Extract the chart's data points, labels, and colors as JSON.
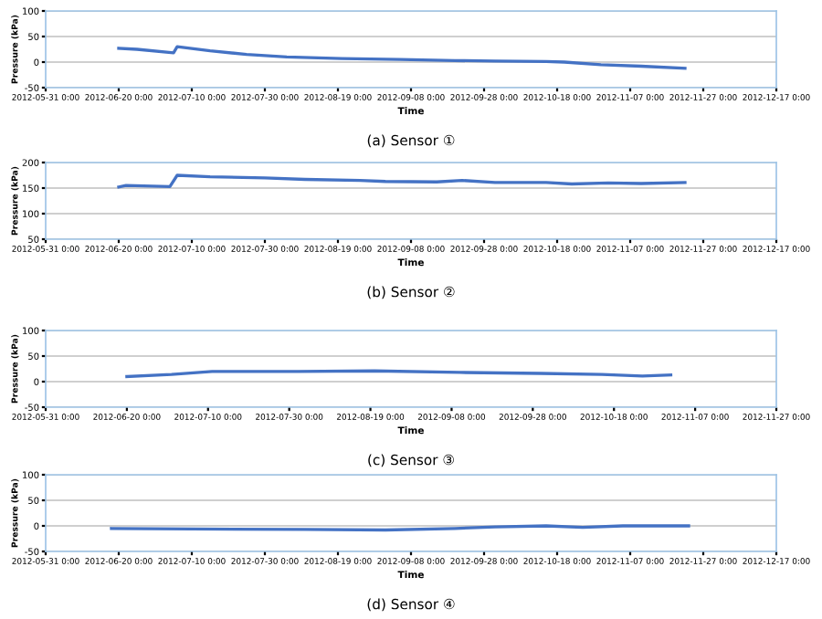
{
  "chart_data": [
    {
      "type": "line",
      "title": "(a) Sensor ①",
      "xlabel": "Time",
      "ylabel": "Pressure (kPa)",
      "grid": "y",
      "line_style": "solid",
      "xlim": [
        "2012-05-31",
        "2012-12-17"
      ],
      "xticks": [
        {
          "value": "2012-05-31",
          "label": "2012-05-31 0:00"
        },
        {
          "value": "2012-06-20",
          "label": "2012-06-20 0:00"
        },
        {
          "value": "2012-07-10",
          "label": "2012-07-10 0:00"
        },
        {
          "value": "2012-07-30",
          "label": "2012-07-30 0:00"
        },
        {
          "value": "2012-08-19",
          "label": "2012-08-19 0:00"
        },
        {
          "value": "2012-09-08",
          "label": "2012-09-08 0:00"
        },
        {
          "value": "2012-09-28",
          "label": "2012-09-28 0:00"
        },
        {
          "value": "2012-10-18",
          "label": "2012-10-18 0:00"
        },
        {
          "value": "2012-11-07",
          "label": "2012-11-07 0:00"
        },
        {
          "value": "2012-11-27",
          "label": "2012-11-27 0:00"
        },
        {
          "value": "2012-12-17",
          "label": "2012-12-17 0:00"
        }
      ],
      "ylim": [
        -50,
        100
      ],
      "yticks": [
        -50,
        0,
        50,
        100
      ],
      "x": [
        "2012-06-20",
        "2012-06-25",
        "2012-07-05",
        "2012-07-06",
        "2012-07-15",
        "2012-07-25",
        "2012-08-05",
        "2012-08-20",
        "2012-09-05",
        "2012-09-20",
        "2012-10-01",
        "2012-10-15",
        "2012-10-20",
        "2012-10-30",
        "2012-11-10",
        "2012-11-22"
      ],
      "series": [
        {
          "color": "#4472c4",
          "values": [
            27,
            25,
            18,
            30,
            22,
            15,
            10,
            7,
            5,
            3,
            2,
            1,
            0,
            -5,
            -8,
            -12
          ]
        }
      ]
    },
    {
      "type": "line",
      "title": "(b) Sensor ②",
      "xlabel": "Time",
      "ylabel": "Pressure (kPa)",
      "grid": "y",
      "line_style": "solid",
      "xlim": [
        "2012-05-31",
        "2012-12-17"
      ],
      "xticks": [
        {
          "value": "2012-05-31",
          "label": "2012-05-31 0:00"
        },
        {
          "value": "2012-06-20",
          "label": "2012-06-20 0:00"
        },
        {
          "value": "2012-07-10",
          "label": "2012-07-10 0:00"
        },
        {
          "value": "2012-07-30",
          "label": "2012-07-30 0:00"
        },
        {
          "value": "2012-08-19",
          "label": "2012-08-19 0:00"
        },
        {
          "value": "2012-09-08",
          "label": "2012-09-08 0:00"
        },
        {
          "value": "2012-09-28",
          "label": "2012-09-28 0:00"
        },
        {
          "value": "2012-10-18",
          "label": "2012-10-18 0:00"
        },
        {
          "value": "2012-11-07",
          "label": "2012-11-07 0:00"
        },
        {
          "value": "2012-11-27",
          "label": "2012-11-27 0:00"
        },
        {
          "value": "2012-12-17",
          "label": "2012-12-17 0:00"
        }
      ],
      "ylim": [
        50,
        200
      ],
      "yticks": [
        50,
        100,
        150,
        200
      ],
      "x": [
        "2012-06-20",
        "2012-06-22",
        "2012-07-04",
        "2012-07-06",
        "2012-07-15",
        "2012-07-30",
        "2012-08-10",
        "2012-08-25",
        "2012-09-01",
        "2012-09-15",
        "2012-09-22",
        "2012-10-01",
        "2012-10-15",
        "2012-10-22",
        "2012-11-01",
        "2012-11-10",
        "2012-11-22"
      ],
      "series": [
        {
          "color": "#4472c4",
          "values": [
            152,
            155,
            153,
            175,
            172,
            170,
            167,
            165,
            163,
            162,
            165,
            161,
            161,
            158,
            160,
            159,
            161
          ]
        }
      ]
    },
    {
      "type": "line",
      "title": "(c) Sensor ③",
      "xlabel": "Time",
      "ylabel": "Pressure (kPa)",
      "grid": "y",
      "line_style": "solid",
      "xlim": [
        "2012-05-31",
        "2012-11-27"
      ],
      "xticks": [
        {
          "value": "2012-05-31",
          "label": "2012-05-31 0:00"
        },
        {
          "value": "2012-06-20",
          "label": "2012-06-20 0:00"
        },
        {
          "value": "2012-07-10",
          "label": "2012-07-10 0:00"
        },
        {
          "value": "2012-07-30",
          "label": "2012-07-30 0:00"
        },
        {
          "value": "2012-08-19",
          "label": "2012-08-19 0:00"
        },
        {
          "value": "2012-09-08",
          "label": "2012-09-08 0:00"
        },
        {
          "value": "2012-09-28",
          "label": "2012-09-28 0:00"
        },
        {
          "value": "2012-10-18",
          "label": "2012-10-18 0:00"
        },
        {
          "value": "2012-11-07",
          "label": "2012-11-07 0:00"
        },
        {
          "value": "2012-11-27",
          "label": "2012-11-27 0:00"
        }
      ],
      "ylim": [
        -50,
        100
      ],
      "yticks": [
        -50,
        0,
        50,
        100
      ],
      "x": [
        "2012-06-20",
        "2012-07-01",
        "2012-07-11",
        "2012-08-01",
        "2012-08-20",
        "2012-09-10",
        "2012-09-30",
        "2012-10-15",
        "2012-10-25",
        "2012-11-01"
      ],
      "series": [
        {
          "color": "#4472c4",
          "values": [
            10,
            14,
            20,
            20,
            21,
            18,
            16,
            14,
            11,
            13
          ]
        }
      ]
    },
    {
      "type": "line",
      "title": "(d) Sensor ④",
      "xlabel": "Time",
      "ylabel": "Pressure (kPa)",
      "grid": "y",
      "line_style": "solid",
      "xlim": [
        "2012-05-31",
        "2012-12-17"
      ],
      "xticks": [
        {
          "value": "2012-05-31",
          "label": "2012-05-31 0:00"
        },
        {
          "value": "2012-06-20",
          "label": "2012-06-20 0:00"
        },
        {
          "value": "2012-07-10",
          "label": "2012-07-10 0:00"
        },
        {
          "value": "2012-07-30",
          "label": "2012-07-30 0:00"
        },
        {
          "value": "2012-08-19",
          "label": "2012-08-19 0:00"
        },
        {
          "value": "2012-09-08",
          "label": "2012-09-08 0:00"
        },
        {
          "value": "2012-09-28",
          "label": "2012-09-28 0:00"
        },
        {
          "value": "2012-10-18",
          "label": "2012-10-18 0:00"
        },
        {
          "value": "2012-11-07",
          "label": "2012-11-07 0:00"
        },
        {
          "value": "2012-11-27",
          "label": "2012-11-27 0:00"
        },
        {
          "value": "2012-12-17",
          "label": "2012-12-17 0:00"
        }
      ],
      "ylim": [
        -50,
        100
      ],
      "yticks": [
        -50,
        0,
        50,
        100
      ],
      "x": [
        "2012-06-18",
        "2012-07-10",
        "2012-08-10",
        "2012-09-01",
        "2012-09-20",
        "2012-10-01",
        "2012-10-15",
        "2012-10-25",
        "2012-11-05",
        "2012-11-23"
      ],
      "series": [
        {
          "color": "#4472c4",
          "values": [
            -5,
            -6,
            -7,
            -8,
            -5,
            -2,
            0,
            -3,
            0,
            0
          ]
        }
      ]
    }
  ]
}
